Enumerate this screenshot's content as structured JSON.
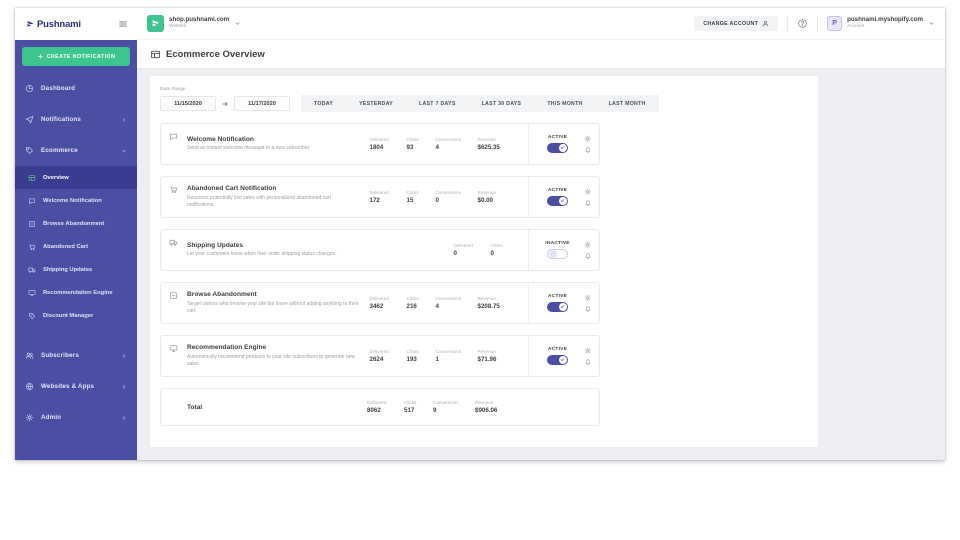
{
  "brand": {
    "name": "Pushnami"
  },
  "topbar": {
    "website_selector": {
      "name": "shop.pushnami.com",
      "type_label": "Website"
    },
    "change_account_label": "CHANGE ACCOUNT",
    "account": {
      "initial": "P",
      "name": "pushnami.myshopify.com",
      "type_label": "Account"
    }
  },
  "sidebar": {
    "create_button": "CREATE NOTIFICATION",
    "items_top": [
      {
        "label": "Dashboard",
        "icon": "dashboard-icon",
        "chevron": null
      },
      {
        "label": "Notifications",
        "icon": "notifications-icon",
        "chevron": "left"
      },
      {
        "label": "Ecommerce",
        "icon": "ecommerce-icon",
        "chevron": "down"
      }
    ],
    "ecommerce_submenu": [
      {
        "label": "Overview",
        "icon": "overview-icon",
        "active": true
      },
      {
        "label": "Welcome Notification",
        "icon": "welcome-icon",
        "active": false
      },
      {
        "label": "Browse Abandonment",
        "icon": "browse-icon",
        "active": false
      },
      {
        "label": "Abandoned Cart",
        "icon": "cart-icon",
        "active": false
      },
      {
        "label": "Shipping Updates",
        "icon": "shipping-icon",
        "active": false
      },
      {
        "label": "Recommendation Engine",
        "icon": "recommendation-icon",
        "active": false
      },
      {
        "label": "Discount Manager",
        "icon": "discount-icon",
        "active": false
      }
    ],
    "items_bottom": [
      {
        "label": "Subscribers",
        "icon": "subscribers-icon",
        "chevron": "left"
      },
      {
        "label": "Websites & Apps",
        "icon": "websites-icon",
        "chevron": "left"
      },
      {
        "label": "Admin",
        "icon": "admin-icon",
        "chevron": "left"
      }
    ]
  },
  "page": {
    "title": "Ecommerce Overview"
  },
  "date_range": {
    "label": "Date Range",
    "start": "11/15/2020",
    "end": "11/17/2020",
    "presets": [
      "TODAY",
      "YESTERDAY",
      "LAST 7 DAYS",
      "LAST 30 DAYS",
      "THIS MONTH",
      "LAST MONTH"
    ]
  },
  "stats_labels": {
    "delivered": "Delivered",
    "clicks": "Clicks",
    "conversions": "Conversions",
    "revenue": "Revenue"
  },
  "notifications": [
    {
      "title": "Welcome Notification",
      "description": "Send an instant welcome message to a new subscriber.",
      "icon": "welcome-icon",
      "delivered": "1804",
      "clicks": "93",
      "conversions": "4",
      "revenue": "$625.35",
      "status": "ACTIVE",
      "enabled": true
    },
    {
      "title": "Abandoned Cart Notification",
      "description": "Resurrect potentially lost sales with personalized abandoned cart notifications.",
      "icon": "cart-icon",
      "delivered": "172",
      "clicks": "15",
      "conversions": "0",
      "revenue": "$0.00",
      "status": "ACTIVE",
      "enabled": true
    },
    {
      "title": "Shipping Updates",
      "description": "Let your customers know when their order shipping status changes.",
      "icon": "shipping-icon",
      "delivered": "0",
      "clicks": "0",
      "conversions": null,
      "revenue": null,
      "status": "INACTIVE",
      "enabled": false
    },
    {
      "title": "Browse Abandonment",
      "description": "Target visitors who browse your site but leave without adding anything to their cart.",
      "icon": "browse-icon",
      "delivered": "3462",
      "clicks": "216",
      "conversions": "4",
      "revenue": "$208.75",
      "status": "ACTIVE",
      "enabled": true
    },
    {
      "title": "Recommendation Engine",
      "description": "Automatically recommend products to your site subscribers to generate new sales.",
      "icon": "recommendation-icon",
      "delivered": "2624",
      "clicks": "193",
      "conversions": "1",
      "revenue": "$71.96",
      "status": "ACTIVE",
      "enabled": true
    }
  ],
  "total": {
    "label": "Total",
    "delivered": "8062",
    "clicks": "517",
    "conversions": "9",
    "revenue": "$906.06"
  },
  "colors": {
    "sidebar_purple": "#4b4fa3",
    "sidebar_active": "#3a3d8f",
    "accent_green": "#3ec48f",
    "toggle_active": "#4b4fa3",
    "page_bg": "#edeef2",
    "logo_navy": "#2d3175",
    "text_dark": "#3c4043",
    "text_muted": "#9aa0a6"
  }
}
